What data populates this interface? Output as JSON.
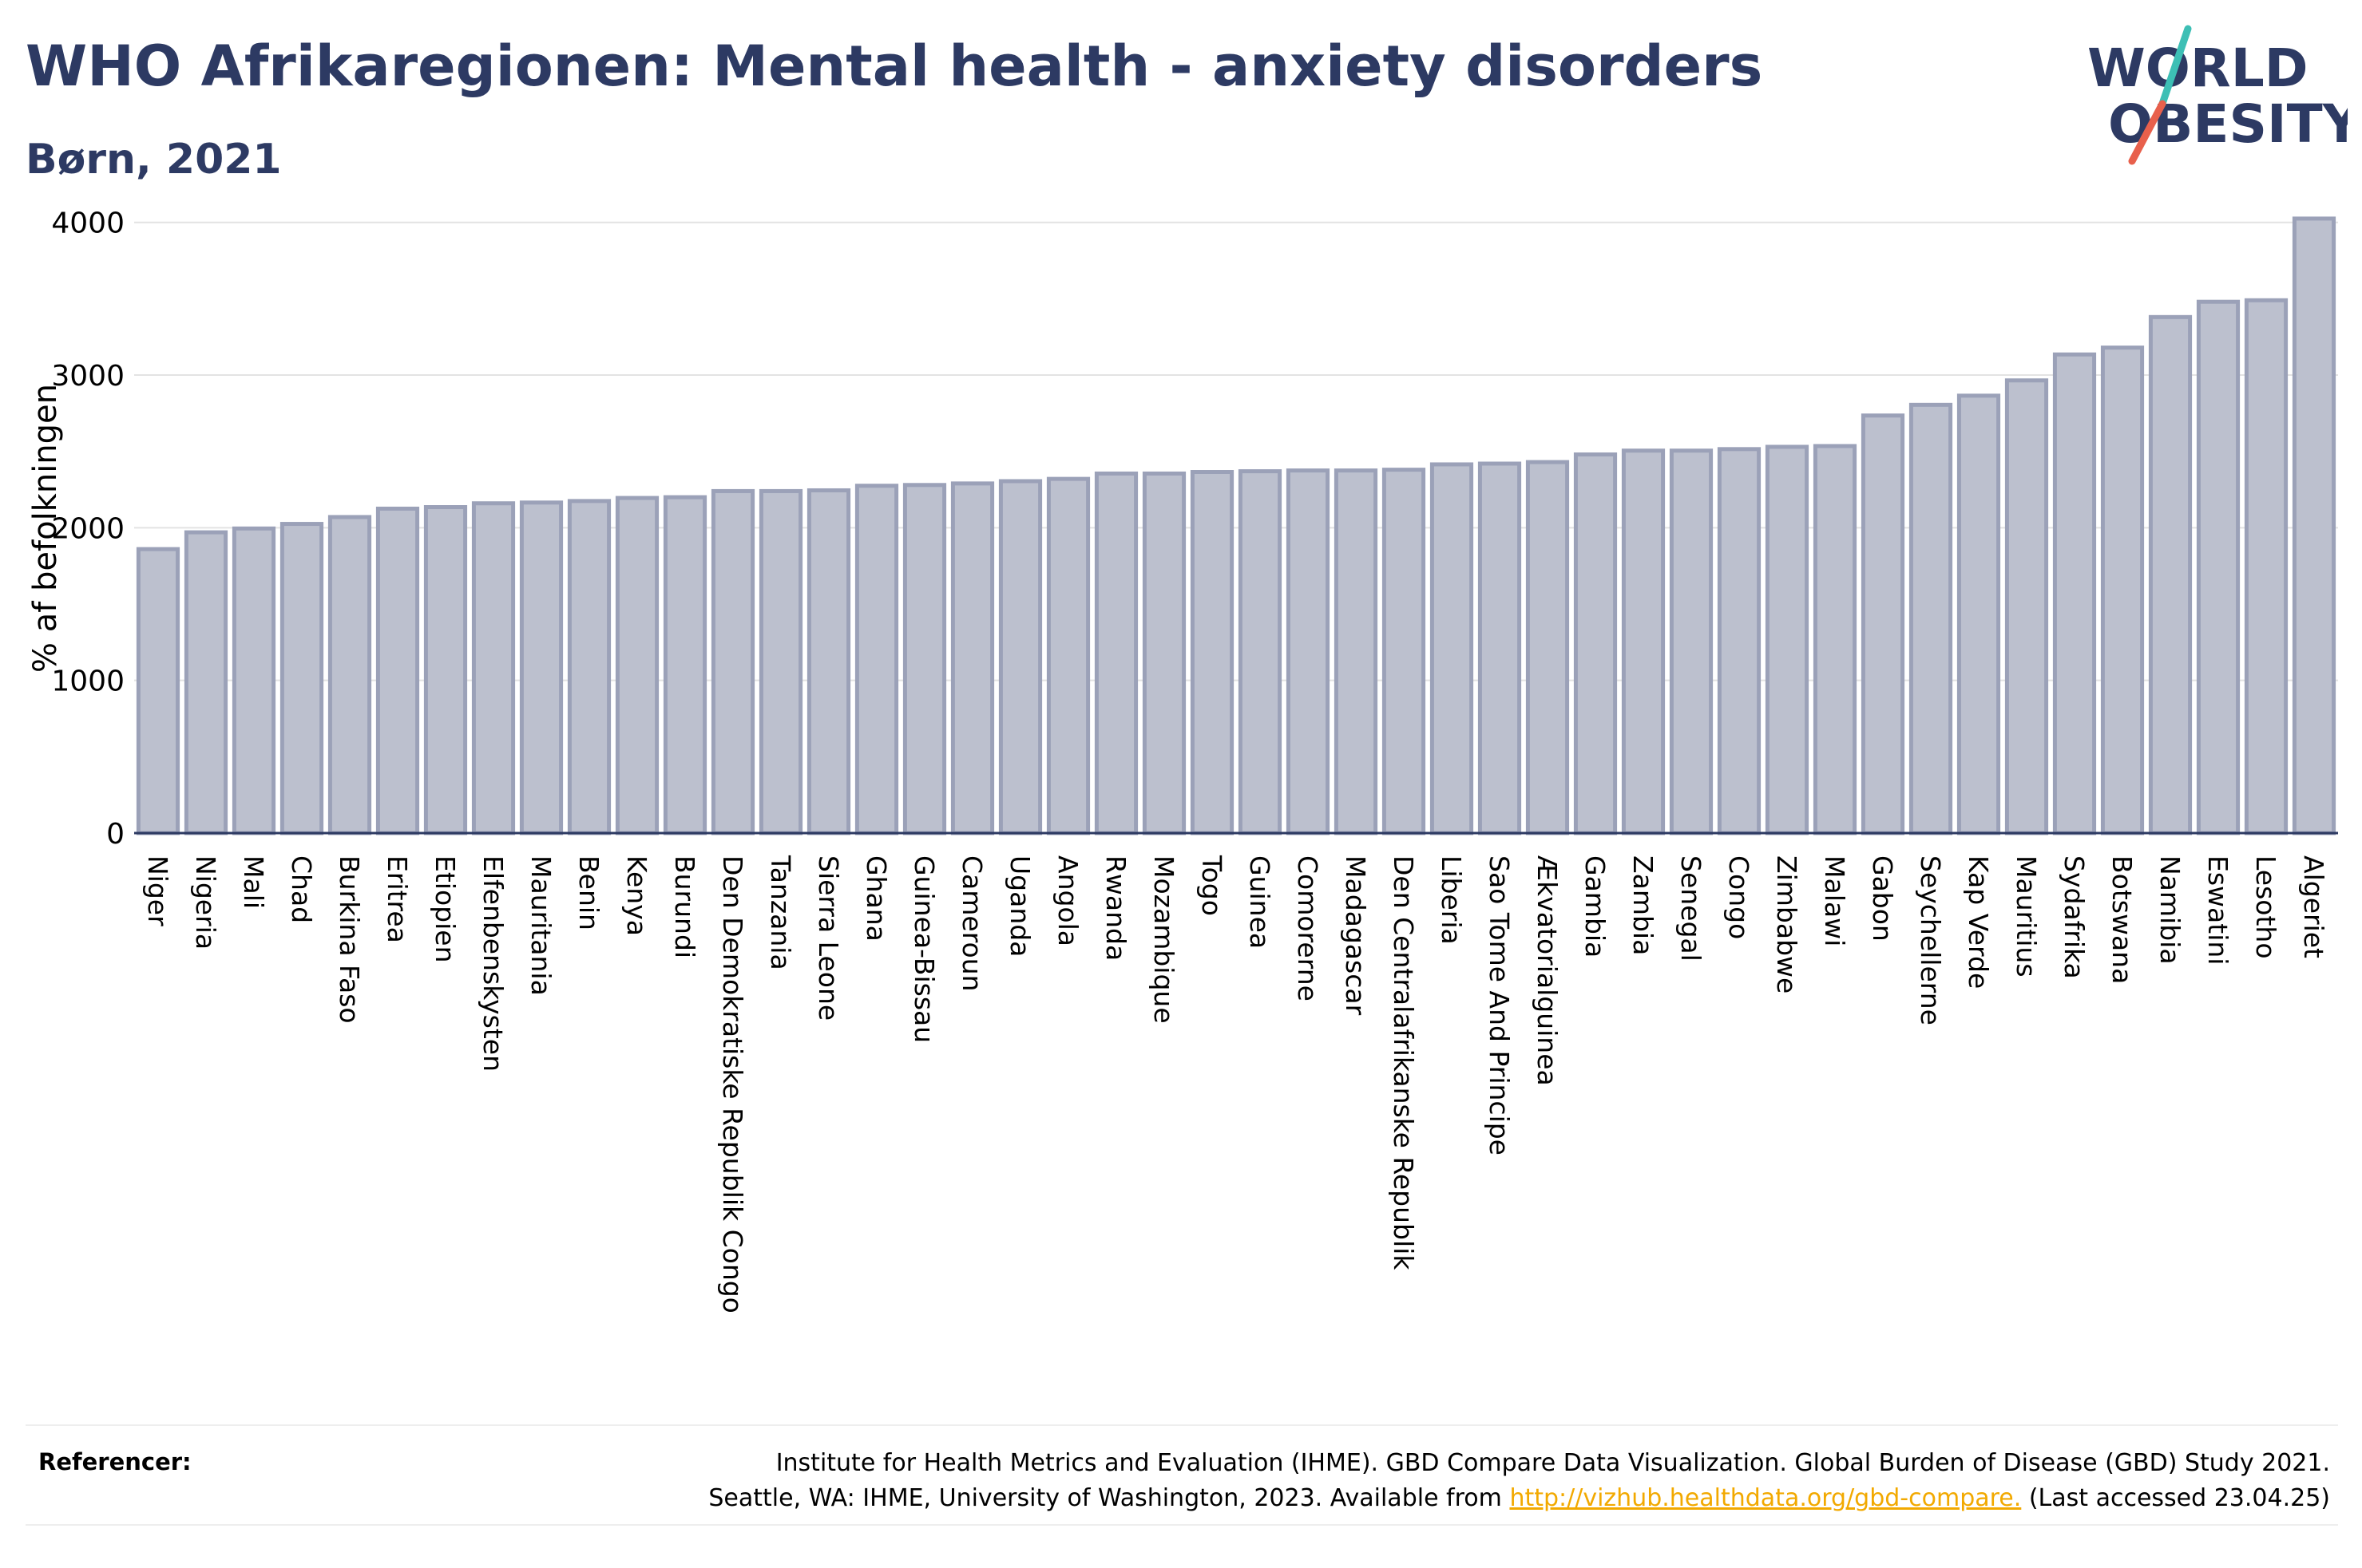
{
  "title": "WHO Afrikaregionen: Mental health - anxiety disorders",
  "subtitle": "Børn, 2021",
  "logo": {
    "line1": "WORLD",
    "line2": "OBESITY",
    "slash_top_color": "#3dbfb5",
    "slash_bottom_color": "#e8604c",
    "text_color": "#2d3a63"
  },
  "chart_data": {
    "type": "bar",
    "ylabel": "% af befolkningen",
    "xlabel": "",
    "ylim": [
      0,
      4150
    ],
    "yticks": [
      0,
      1000,
      2000,
      3000,
      4000
    ],
    "grid": true,
    "bar_color": "#bcc0ce",
    "bar_edge_color": "#9ba1b8",
    "categories": [
      "Niger",
      "Nigeria",
      "Mali",
      "Chad",
      "Burkina Faso",
      "Eritrea",
      "Etiopien",
      "Elfenbenskysten",
      "Mauritania",
      "Benin",
      "Kenya",
      "Burundi",
      "Den Demokratiske Republik Congo",
      "Tanzania",
      "Sierra Leone",
      "Ghana",
      "Guinea-Bissau",
      "Cameroun",
      "Uganda",
      "Angola",
      "Rwanda",
      "Mozambique",
      "Togo",
      "Guinea",
      "Comorerne",
      "Madagascar",
      "Den Centralafrikanske Republik",
      "Liberia",
      "Sao Tome And Principe",
      "Ækvatorialguinea",
      "Gambia",
      "Zambia",
      "Senegal",
      "Congo",
      "Zimbabwe",
      "Malawi",
      "Gabon",
      "Seychellerne",
      "Kap Verde",
      "Mauritius",
      "Sydafrika",
      "Botswana",
      "Namibia",
      "Eswatini",
      "Lesotho",
      "Algeriet"
    ],
    "values": [
      1860,
      1970,
      1995,
      2025,
      2070,
      2125,
      2135,
      2160,
      2165,
      2175,
      2195,
      2200,
      2240,
      2240,
      2245,
      2275,
      2280,
      2290,
      2305,
      2320,
      2355,
      2355,
      2365,
      2370,
      2375,
      2375,
      2380,
      2415,
      2420,
      2430,
      2480,
      2505,
      2505,
      2515,
      2530,
      2535,
      2735,
      2805,
      2865,
      2965,
      3135,
      3180,
      3380,
      3480,
      3490,
      4025
    ]
  },
  "references": {
    "label": "Referencer:",
    "line1": "Institute for Health Metrics and Evaluation (IHME). GBD Compare Data Visualization. Global Burden of Disease (GBD) Study 2021.",
    "line2_before": "Seattle, WA: IHME, University of Washington, 2023. Available from",
    "link": "http://vizhub.healthdata.org/gbd-compare.",
    "line2_after": "(Last accessed 23.04.25)",
    "link_color": "#f2a900"
  }
}
